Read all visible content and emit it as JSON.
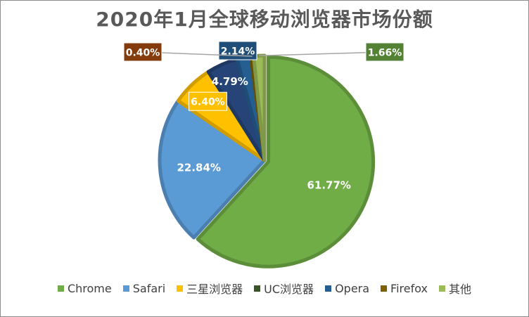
{
  "chart_data": {
    "type": "pie",
    "title": "2020年1月全球移动浏览器市场份额",
    "categories": [
      "Chrome",
      "Safari",
      "三星浏览器",
      "UC浏览器",
      "Opera",
      "Firefox",
      "其他"
    ],
    "values": [
      61.77,
      22.84,
      6.4,
      4.79,
      2.14,
      0.4,
      1.66
    ],
    "data_labels": [
      "61.77%",
      "22.84%",
      "6.40%",
      "4.79%",
      "2.14%",
      "0.40%",
      "1.66%"
    ],
    "colors": [
      "#70ad47",
      "#5b9bd5",
      "#ffc000",
      "#264478",
      "#255e91",
      "#7f6000",
      "#9bbb59"
    ],
    "label_box_colors": [
      "#70ad47",
      "#5b9bd5",
      "#ffc000",
      "#375623",
      "#1f4e79",
      "#843c0c",
      "#548235"
    ],
    "legend_colors": [
      "#70ad47",
      "#5b9bd5",
      "#ffc000",
      "#375623",
      "#255e91",
      "#806000",
      "#9bbb59"
    ],
    "legend_position": "bottom"
  }
}
